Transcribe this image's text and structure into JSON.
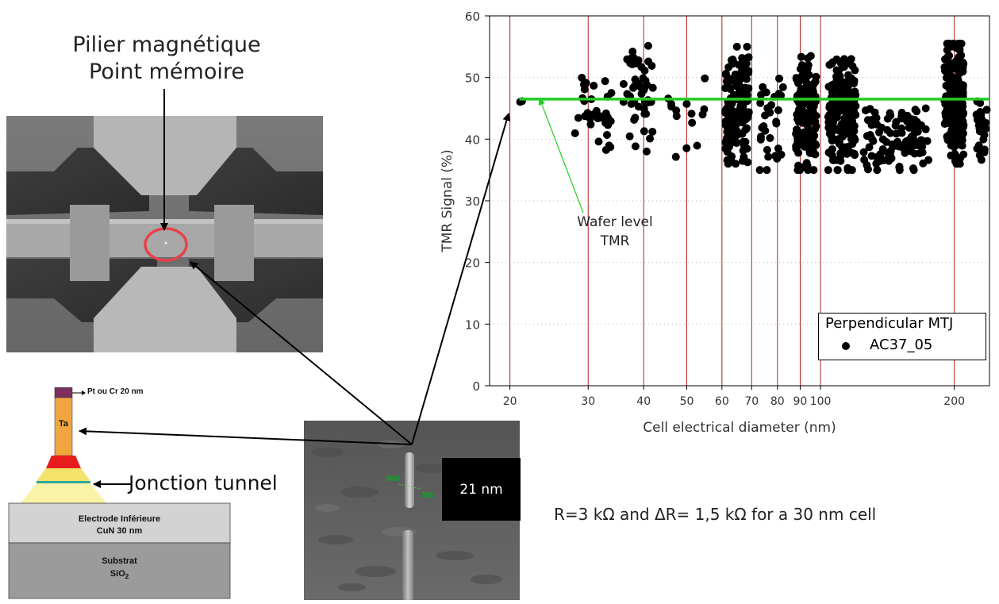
{
  "left_title": {
    "line1": "Pilier magnétique",
    "line2": "Point mémoire"
  },
  "stack": {
    "top_label": "Pt ou Cr 20 nm",
    "ta_label": "Ta",
    "electrode_line1": "Electrode Inférieure",
    "electrode_line2": "CuN 30 nm",
    "substrate_line1": "Substrat",
    "substrate_line2": "SiO",
    "substrate_sub": "2"
  },
  "junction_label": "Jonction tunnel",
  "pillar_scale": "21 nm",
  "formula": "R=3 kΩ and ΔR= 1,5 kΩ for a 30 nm cell",
  "annotation": {
    "line1": "Wafer level",
    "line2": "TMR"
  },
  "chart_data": {
    "type": "scatter",
    "xlabel": "Cell electrical diameter (nm)",
    "ylabel": "TMR Signal (%)",
    "xscale": "log",
    "xlim": [
      18,
      240
    ],
    "ylim": [
      0,
      60
    ],
    "x_ticks": [
      20,
      30,
      40,
      50,
      60,
      70,
      80,
      90,
      100,
      200
    ],
    "y_ticks": [
      0,
      10,
      20,
      30,
      40,
      50,
      60
    ],
    "vertical_lines_at": [
      20,
      30,
      40,
      50,
      60,
      70,
      80,
      90,
      100,
      200
    ],
    "reference_line": {
      "y": 46.5,
      "color": "#22cc22"
    },
    "legend": {
      "title": "Perpendicular MTJ",
      "entries": [
        "AC37_05"
      ],
      "position": "bottom-right"
    },
    "colors": {
      "points": "#000000",
      "vlines": "#b22222",
      "grid": "#bbbbbb"
    },
    "clusters": [
      {
        "x_center": 21,
        "x_spread": 0.3,
        "y_min": 45.5,
        "y_max": 46.5,
        "count": 2
      },
      {
        "x_center": 31,
        "x_spread": 3,
        "y_min": 36,
        "y_max": 53,
        "count": 35
      },
      {
        "x_center": 39,
        "x_spread": 3,
        "y_min": 38,
        "y_max": 56,
        "count": 50
      },
      {
        "x_center": 50,
        "x_spread": 5,
        "y_min": 36,
        "y_max": 53,
        "count": 14
      },
      {
        "x_center": 65,
        "x_spread": 4,
        "y_min": 36,
        "y_max": 55,
        "count": 160
      },
      {
        "x_center": 78,
        "x_spread": 5,
        "y_min": 35,
        "y_max": 50,
        "count": 30
      },
      {
        "x_center": 93,
        "x_spread": 5,
        "y_min": 35,
        "y_max": 53.5,
        "count": 140
      },
      {
        "x_center": 112,
        "x_spread": 8,
        "y_min": 35,
        "y_max": 53,
        "count": 190
      },
      {
        "x_center": 150,
        "x_spread": 25,
        "y_min": 35,
        "y_max": 45,
        "count": 110
      },
      {
        "x_center": 200,
        "x_spread": 10,
        "y_min": 36,
        "y_max": 55.5,
        "count": 230
      },
      {
        "x_center": 230,
        "x_spread": 7,
        "y_min": 36,
        "y_max": 47,
        "count": 25
      }
    ]
  }
}
